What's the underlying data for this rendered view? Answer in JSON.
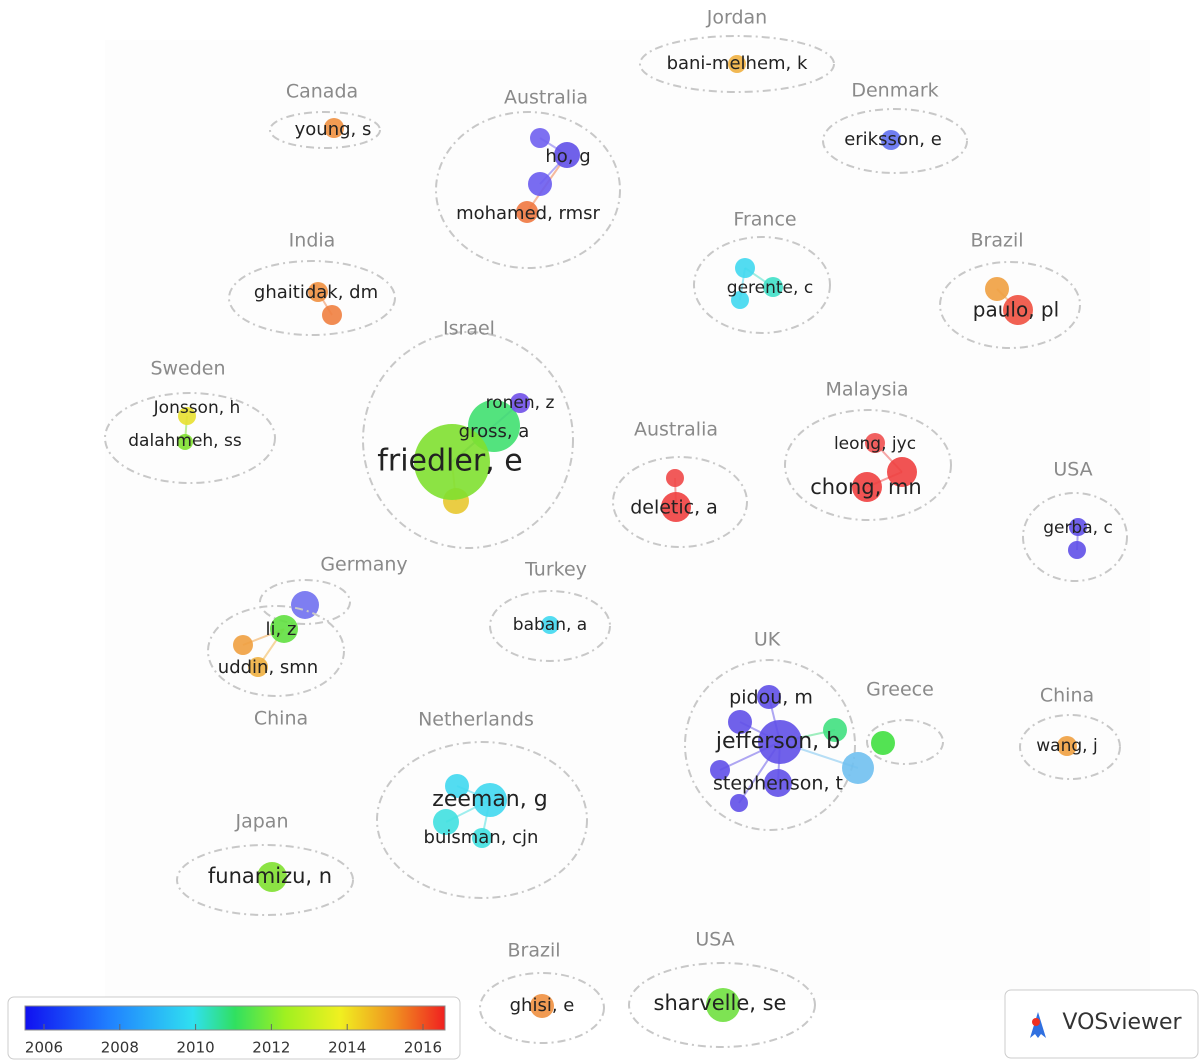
{
  "clusters": [
    {
      "country": "Jordan",
      "authors": [
        "bani-melhem, k"
      ]
    },
    {
      "country": "Canada",
      "authors": [
        "young, s"
      ]
    },
    {
      "country": "Australia",
      "authors": [
        "ho, g",
        "mohamed, rmsr"
      ]
    },
    {
      "country": "Denmark",
      "authors": [
        "eriksson, e"
      ]
    },
    {
      "country": "France",
      "authors": [
        "gerente, c"
      ]
    },
    {
      "country": "India",
      "authors": [
        "ghaitidak, dm"
      ]
    },
    {
      "country": "Brazil",
      "authors": [
        "paulo, pl"
      ]
    },
    {
      "country": "Israel",
      "authors": [
        "ronen, z",
        "gross, a",
        "friedler, e"
      ]
    },
    {
      "country": "Sweden",
      "authors": [
        "Jonsson, h",
        "dalahmeh, ss"
      ]
    },
    {
      "country": "Australia",
      "authors": [
        "deletic, a"
      ]
    },
    {
      "country": "Malaysia",
      "authors": [
        "leong, jyc",
        "chong, mn"
      ]
    },
    {
      "country": "USA",
      "authors": [
        "gerba, c"
      ]
    },
    {
      "country": "Germany",
      "authors": []
    },
    {
      "country": "China",
      "authors": [
        "li, z",
        "uddin, smn"
      ]
    },
    {
      "country": "Turkey",
      "authors": [
        "baban, a"
      ]
    },
    {
      "country": "UK",
      "authors": [
        "pidou, m",
        "jefferson, b",
        "stephenson, t"
      ]
    },
    {
      "country": "Greece",
      "authors": []
    },
    {
      "country": "China",
      "authors": [
        "wang, j"
      ]
    },
    {
      "country": "Netherlands",
      "authors": [
        "zeeman, g",
        "buisman, cjn"
      ]
    },
    {
      "country": "Japan",
      "authors": [
        "funamizu, n"
      ]
    },
    {
      "country": "Brazil",
      "authors": [
        "ghisi, e"
      ]
    },
    {
      "country": "USA",
      "authors": [
        "sharvelle, se"
      ]
    }
  ],
  "legend": {
    "ticks": [
      "2006",
      "2008",
      "2010",
      "2012",
      "2014",
      "2016"
    ]
  },
  "logo": "VOSviewer"
}
